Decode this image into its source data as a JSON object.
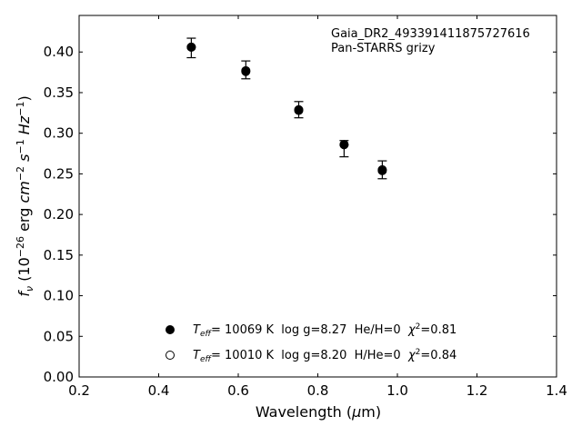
{
  "chart_data": {
    "type": "scatter",
    "title": "",
    "xlabel": "Wavelength (μm)",
    "ylabel": "fν (10⁻²⁶ erg cm⁻² s⁻¹ Hz⁻¹)",
    "xlim": [
      0.2,
      1.4
    ],
    "ylim": [
      0.0,
      0.445
    ],
    "x_ticks": [
      "0.2",
      "0.4",
      "0.6",
      "0.8",
      "1.0",
      "1.2",
      "1.4"
    ],
    "y_ticks": [
      "0.00",
      "0.05",
      "0.10",
      "0.15",
      "0.20",
      "0.25",
      "0.30",
      "0.35",
      "0.40"
    ],
    "annotations": [
      "Gaia_DR2_493391411875727616",
      "Pan-STARRS grizy"
    ],
    "observed": {
      "x": [
        0.482,
        0.619,
        0.752,
        0.866,
        0.962
      ],
      "y": [
        0.405,
        0.378,
        0.329,
        0.281,
        0.255
      ],
      "yerr": [
        0.012,
        0.011,
        0.01,
        0.01,
        0.011
      ]
    },
    "series": [
      {
        "name": "T_eff= 10069 K  log g=8.27  He/H=0  χ²=0.81",
        "marker": "filled",
        "x": [
          0.482,
          0.619,
          0.752,
          0.866,
          0.962
        ],
        "y": [
          0.406,
          0.376,
          0.328,
          0.286,
          0.254
        ]
      },
      {
        "name": "T_eff= 10010 K  log g=8.20  H/He=0  χ²=0.84",
        "marker": "open",
        "x": [
          0.482,
          0.619,
          0.752,
          0.866,
          0.962
        ],
        "y": [
          0.406,
          0.377,
          0.329,
          0.286,
          0.255
        ]
      }
    ],
    "legend": {
      "placement": "lower-center",
      "entries": [
        {
          "teff_label": "T",
          "teff_sub": "eff",
          "text": "= 10069 K  log g=8.27  He/H=0  ",
          "chi": "χ",
          "chi_sup": "2",
          "chi_val": "=0.81"
        },
        {
          "teff_label": "T",
          "teff_sub": "eff",
          "text": "= 10010 K  log g=8.20  H/He=0  ",
          "chi": "χ",
          "chi_sup": "2",
          "chi_val": "=0.84"
        }
      ]
    },
    "grid": false
  }
}
